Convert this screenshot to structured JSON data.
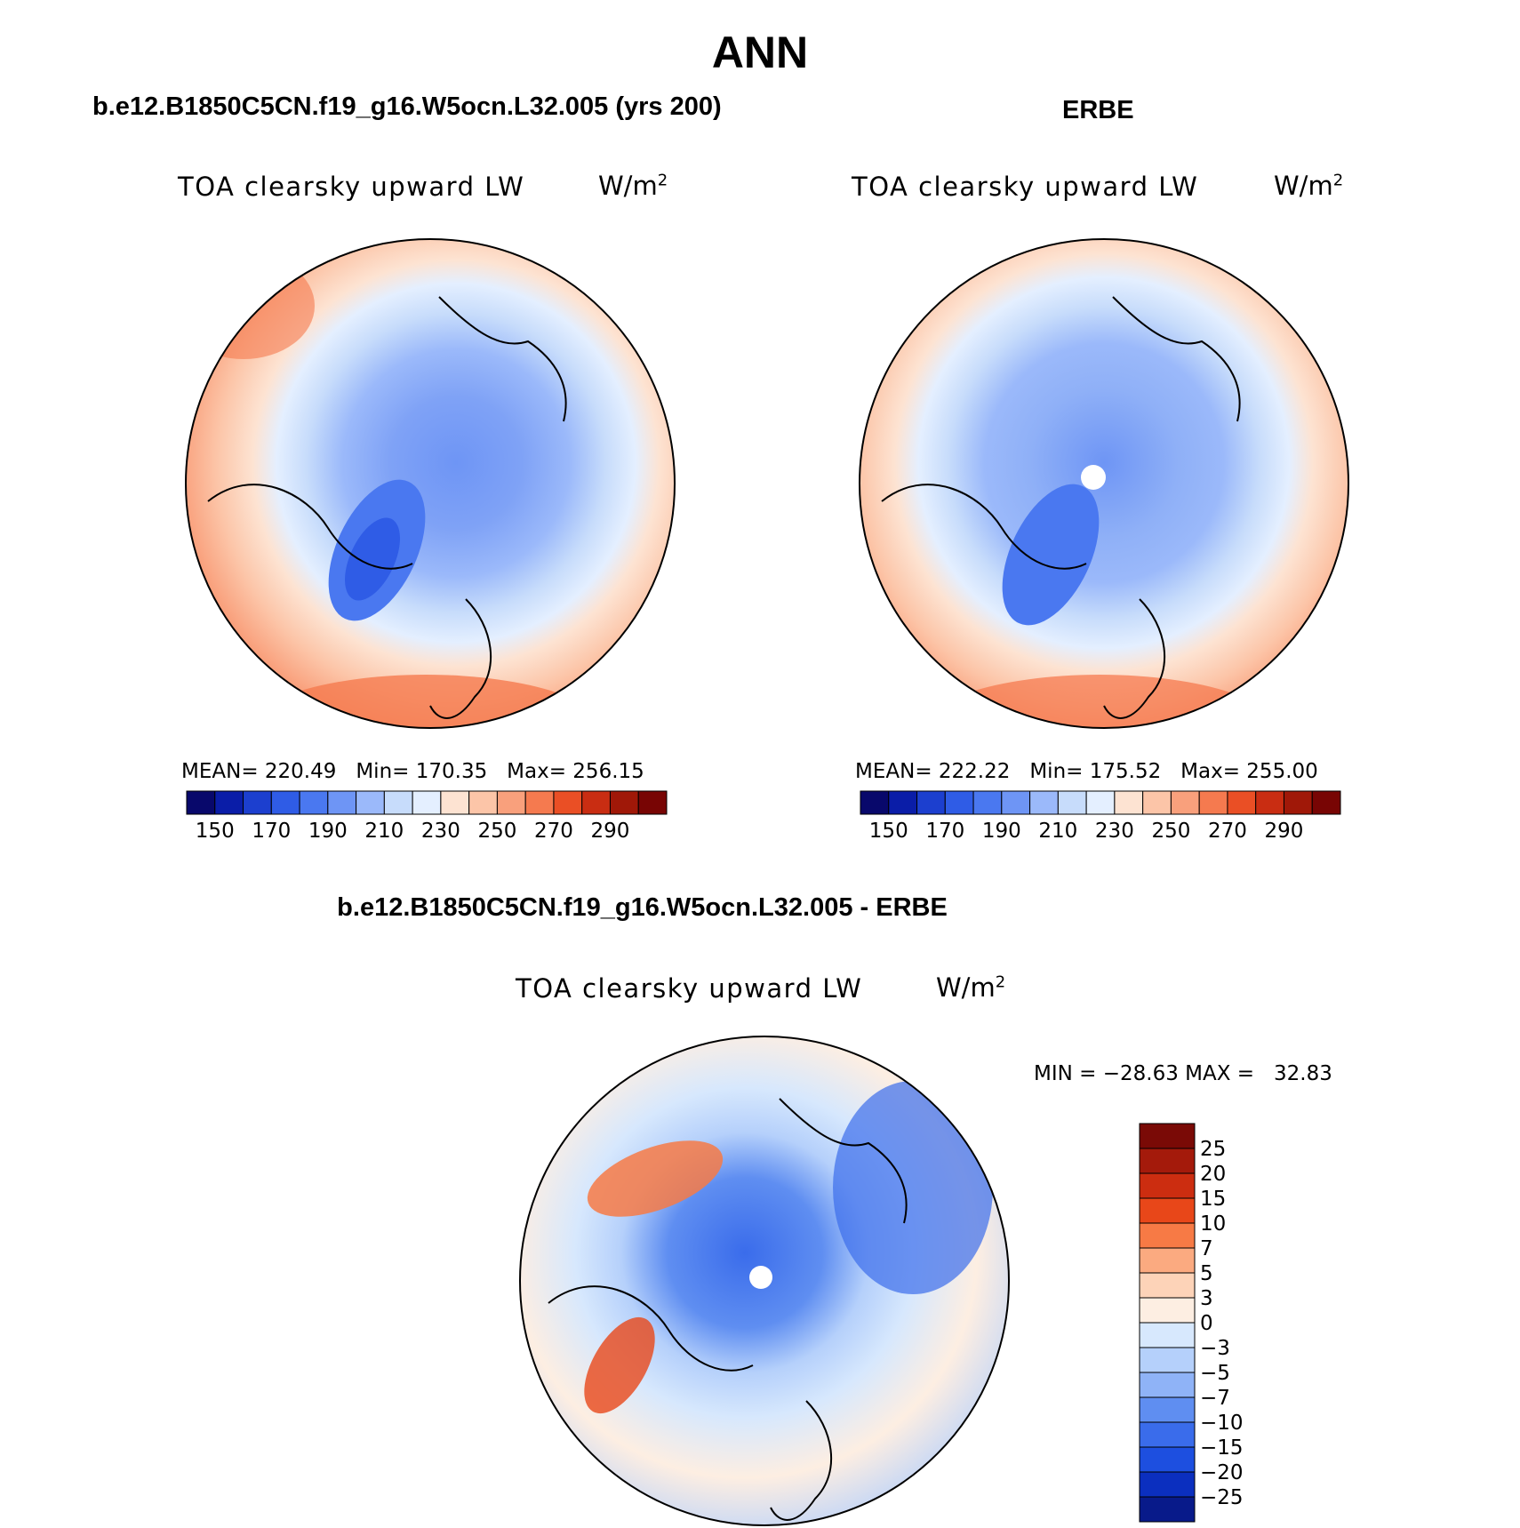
{
  "title": "ANN",
  "panels": {
    "left": {
      "case": "b.e12.B1850C5CN.f19_g16.W5ocn.L32.005 (yrs 200)",
      "variable": "TOA clearsky upward LW",
      "units_base": "W/m",
      "units_exp": "2",
      "mean_label": "MEAN=",
      "mean": "220.49",
      "min_label": "Min=",
      "min": "170.35",
      "max_label": "Max=",
      "max": "256.15"
    },
    "right": {
      "case": "ERBE",
      "variable": "TOA clearsky upward LW",
      "units_base": "W/m",
      "units_exp": "2",
      "mean_label": "MEAN=",
      "mean": "222.22",
      "min_label": "Min=",
      "min": "175.52",
      "max_label": "Max=",
      "max": "255.00"
    },
    "diff": {
      "case": "b.e12.B1850C5CN.f19_g16.W5ocn.L32.005 - ERBE",
      "variable": "TOA clearsky upward LW",
      "units_base": "W/m",
      "units_exp": "2",
      "minmax_text": "MIN = −28.63 MAX =   32.83"
    }
  },
  "chart_data": [
    {
      "type": "heatmap",
      "projection": "north polar stereographic",
      "title": "TOA clearsky upward LW",
      "units": "W/m2",
      "stats": {
        "mean": 220.49,
        "min": 170.35,
        "max": 256.15
      },
      "colorbar": {
        "levels": [
          150,
          160,
          170,
          180,
          190,
          200,
          210,
          220,
          230,
          240,
          250,
          260,
          270,
          280,
          290
        ],
        "tick_labels": [
          "150",
          "170",
          "190",
          "210",
          "230",
          "250",
          "270",
          "290"
        ],
        "colors": [
          "#08086b",
          "#0a1da8",
          "#1c3fcf",
          "#2f5ce6",
          "#4a78f0",
          "#6e95f5",
          "#9bb9fa",
          "#c7dcfb",
          "#e4efff",
          "#fde3d2",
          "#fcc5a8",
          "#f9a07c",
          "#f57a4f",
          "#ea4f25",
          "#c92d12",
          "#a01808",
          "#780504"
        ]
      }
    },
    {
      "type": "heatmap",
      "projection": "north polar stereographic",
      "title": "TOA clearsky upward LW",
      "units": "W/m2",
      "stats": {
        "mean": 222.22,
        "min": 175.52,
        "max": 255.0
      },
      "colorbar": {
        "levels": [
          150,
          160,
          170,
          180,
          190,
          200,
          210,
          220,
          230,
          240,
          250,
          260,
          270,
          280,
          290
        ],
        "tick_labels": [
          "150",
          "170",
          "190",
          "210",
          "230",
          "250",
          "270",
          "290"
        ],
        "colors": [
          "#08086b",
          "#0a1da8",
          "#1c3fcf",
          "#2f5ce6",
          "#4a78f0",
          "#6e95f5",
          "#9bb9fa",
          "#c7dcfb",
          "#e4efff",
          "#fde3d2",
          "#fcc5a8",
          "#f9a07c",
          "#f57a4f",
          "#ea4f25",
          "#c92d12",
          "#a01808",
          "#780504"
        ]
      }
    },
    {
      "type": "heatmap",
      "projection": "north polar stereographic",
      "title": "TOA clearsky upward LW",
      "units": "W/m2",
      "stats": {
        "min": -28.63,
        "max": 32.83
      },
      "colorbar": {
        "levels": [
          25,
          20,
          15,
          10,
          7,
          5,
          3,
          0,
          -3,
          -5,
          -7,
          -10,
          -15,
          -20,
          -25
        ],
        "tick_labels": [
          "25",
          "20",
          "15",
          "10",
          "7",
          "5",
          "3",
          "0",
          "−3",
          "−5",
          "−7",
          "−10",
          "−15",
          "−20",
          "−25"
        ],
        "colors": [
          "#7a0a06",
          "#a41a0b",
          "#cc2d10",
          "#e84719",
          "#f77a45",
          "#fbaa80",
          "#fdd3b8",
          "#fdeee2",
          "#d7e8fd",
          "#b5d0fb",
          "#8fb3f7",
          "#5f8ef1",
          "#3a6ceb",
          "#1d4fe0",
          "#0b2fbf",
          "#081a8a"
        ]
      }
    }
  ]
}
